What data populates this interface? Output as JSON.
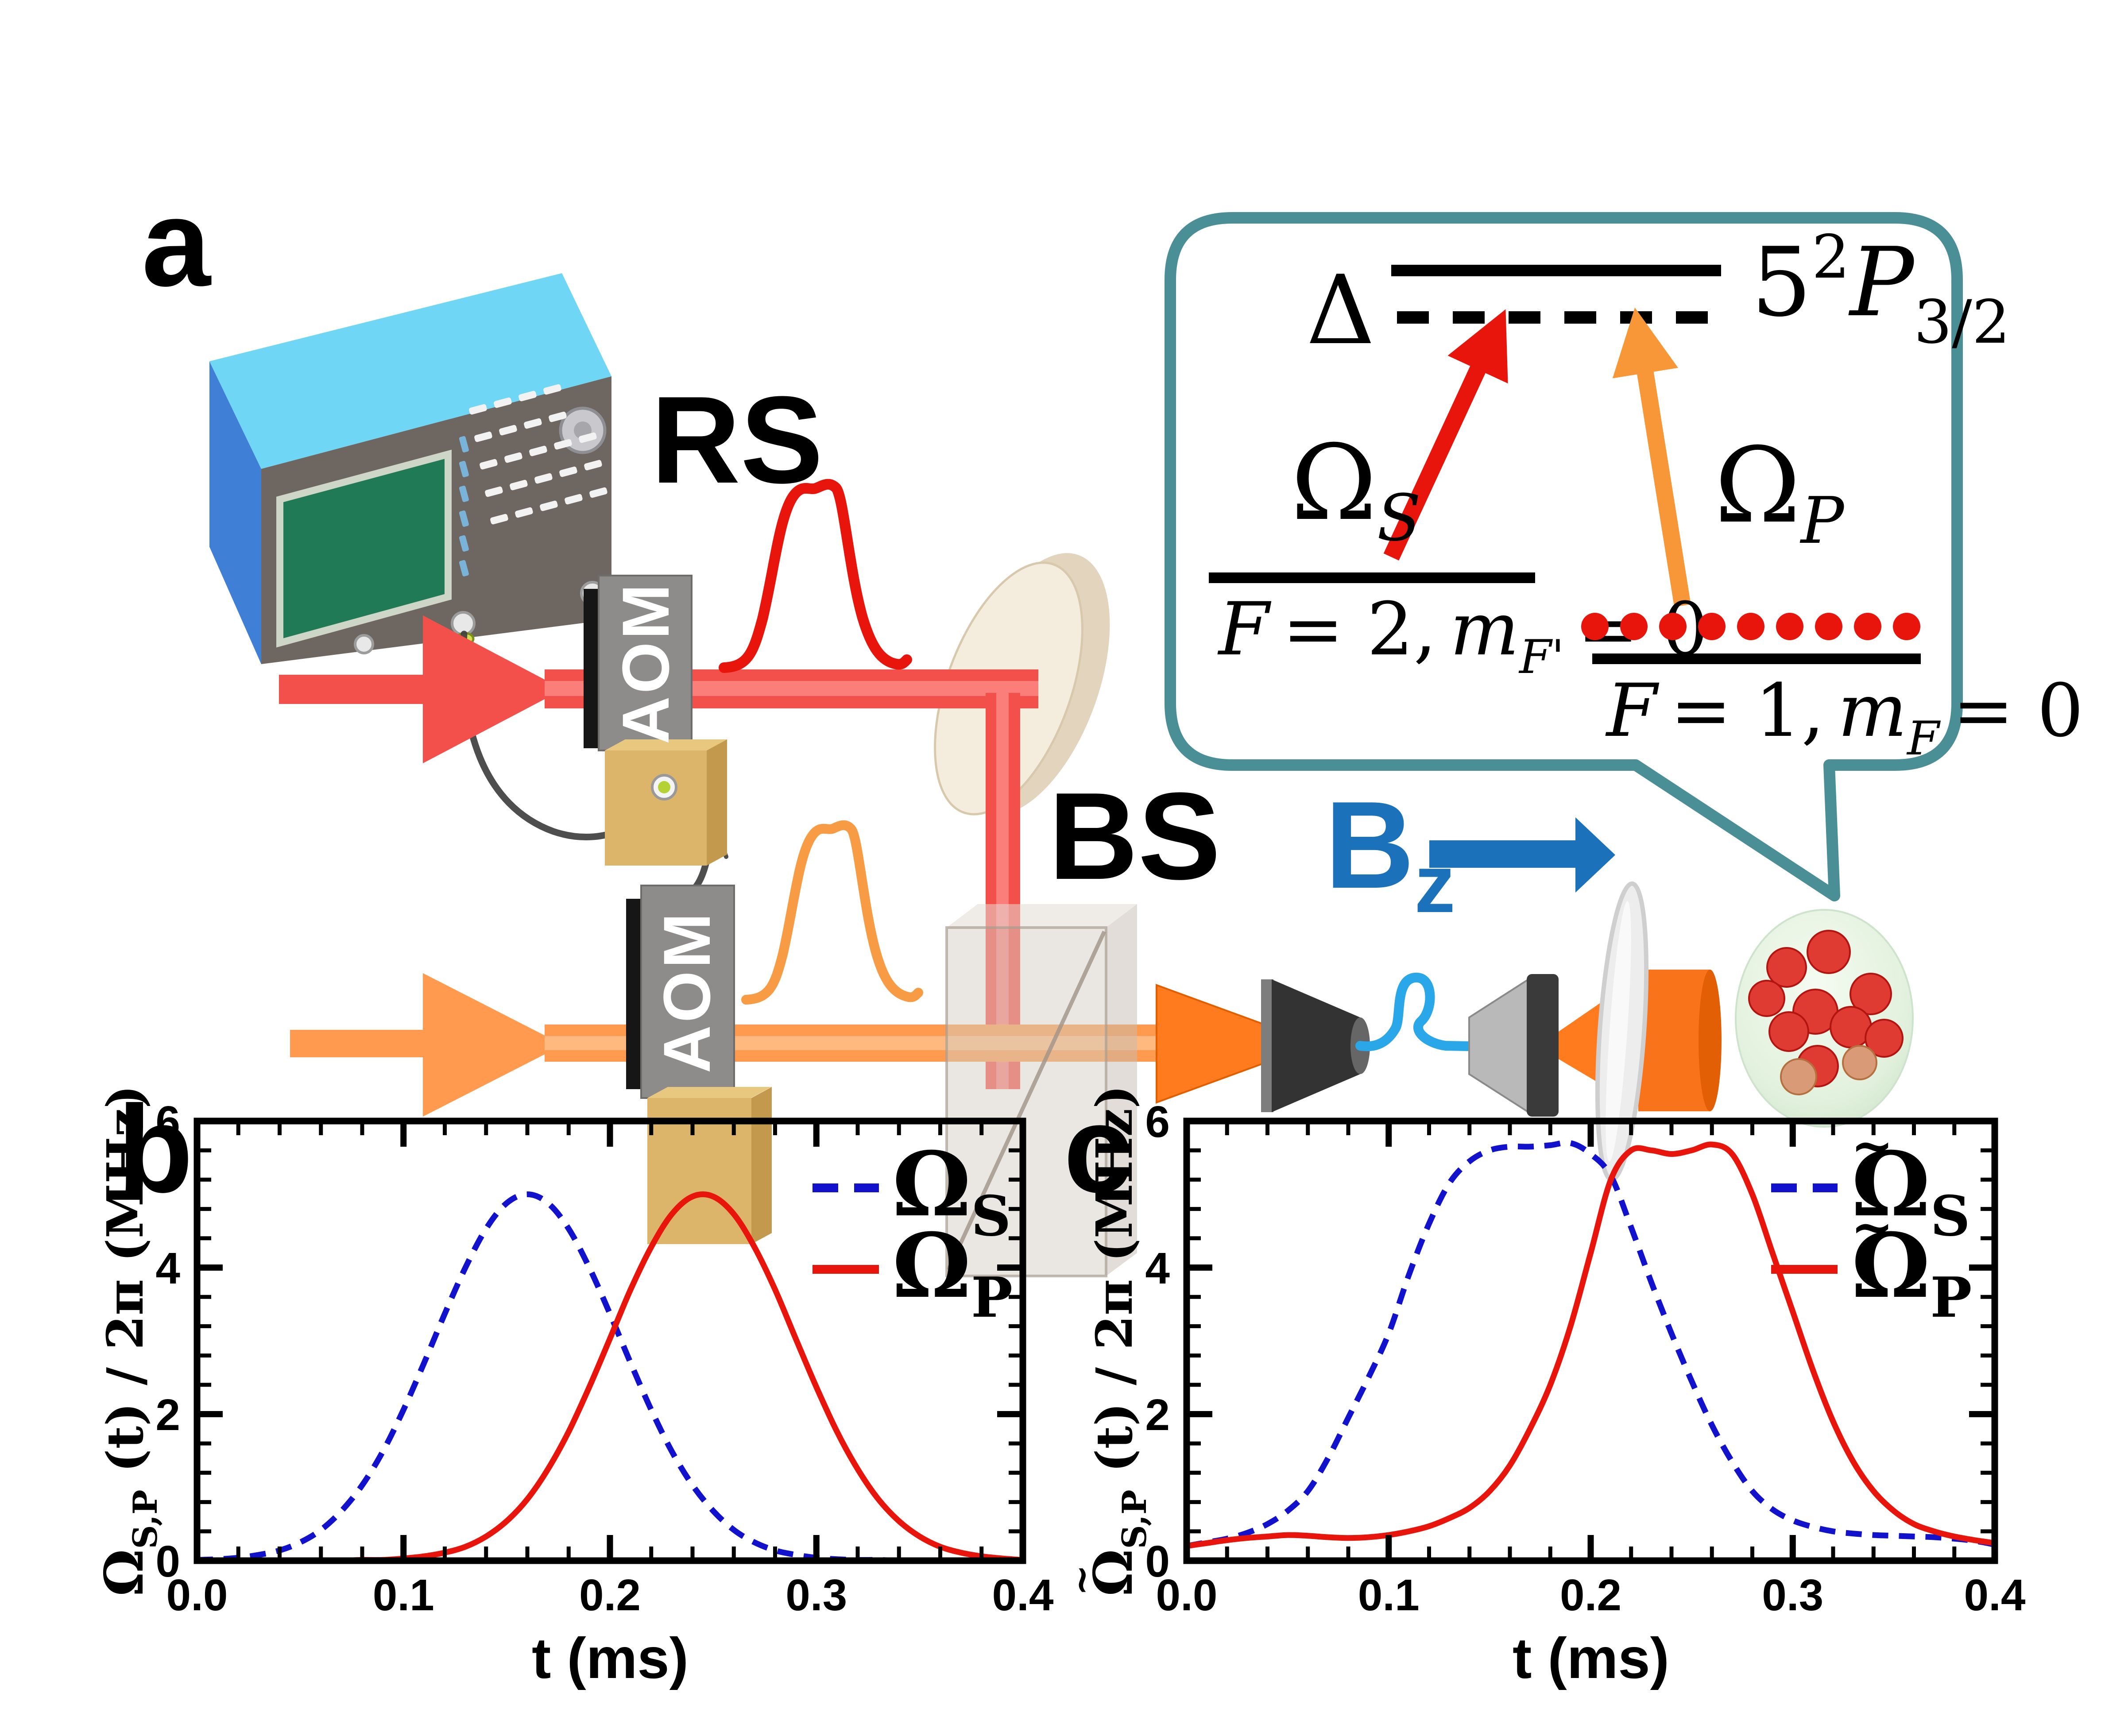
{
  "figure": {
    "panel_a_label": "a",
    "panel_b_label": "b",
    "panel_c_label": "c",
    "rs_label": "RS",
    "aom_label": "AOM",
    "bs_label": "BS",
    "bz": {
      "base": "B",
      "sub": "z"
    },
    "colors": {
      "red_beam": "#f4504b",
      "orange_beam": "#ff9a4e",
      "pulse_red": "#e8150d",
      "pulse_orange": "#f79b45",
      "bz_blue": "#1b72bb",
      "bubble_teal": "#4a8e96",
      "curve_blue": "#1212cc",
      "curve_red": "#e8150d"
    },
    "inset": {
      "delta": "Δ",
      "excited": {
        "n": "5",
        "sup": "2",
        "p": "P",
        "sub": "3/2"
      },
      "omega_s": {
        "base": "Ω",
        "sub": "S"
      },
      "omega_p": {
        "base": "Ω",
        "sub": "P"
      },
      "f2": {
        "f": "F",
        "mid": "= 2,",
        "m": "m",
        "sub": "F'",
        "end": "= 0"
      },
      "f1": {
        "f": "F",
        "mid": "= 1,",
        "m": "m",
        "sub": "F",
        "end": "= 0"
      }
    }
  },
  "chart_data": [
    {
      "id": "b",
      "type": "line",
      "title": "",
      "xlabel": "t (ms)",
      "ylabel": {
        "tilde": false,
        "base": "Ω",
        "sub": "S,P",
        "rest": " (t) / 2π (MHz)"
      },
      "xlim": [
        0,
        0.4
      ],
      "ylim": [
        0,
        6
      ],
      "xticks": [
        0,
        0.1,
        0.2,
        0.3,
        0.4
      ],
      "yticks": [
        0,
        2,
        4,
        6
      ],
      "xminor": 0.02,
      "yminor": 0.4,
      "grid": false,
      "legend_position": "inside top-right",
      "x": [
        0,
        0.01,
        0.02,
        0.03,
        0.04,
        0.05,
        0.06,
        0.07,
        0.08,
        0.09,
        0.1,
        0.11,
        0.12,
        0.13,
        0.14,
        0.15,
        0.16,
        0.17,
        0.18,
        0.19,
        0.2,
        0.21,
        0.22,
        0.23,
        0.24,
        0.25,
        0.26,
        0.27,
        0.28,
        0.29,
        0.3,
        0.31,
        0.32,
        0.33,
        0.34,
        0.35,
        0.36,
        0.37,
        0.38,
        0.39,
        0.4
      ],
      "series": [
        {
          "name_base": "Ω",
          "name_sub": "S",
          "tilde": false,
          "color": "#1212cc",
          "dash": true,
          "peak_mhz": 5.0,
          "peak_t_ms": 0.16,
          "values": [
            0.01,
            0.02,
            0.04,
            0.08,
            0.14,
            0.25,
            0.42,
            0.68,
            1.03,
            1.49,
            2.06,
            2.7,
            3.37,
            4.0,
            4.53,
            4.88,
            5.0,
            4.88,
            4.53,
            4.0,
            3.37,
            2.7,
            2.06,
            1.49,
            1.03,
            0.68,
            0.42,
            0.25,
            0.14,
            0.08,
            0.04,
            0.02,
            0.01,
            0.01,
            0,
            0,
            0,
            0,
            0,
            0,
            0
          ]
        },
        {
          "name_base": "Ω",
          "name_sub": "P",
          "tilde": false,
          "color": "#e8150d",
          "dash": false,
          "peak_mhz": 5.0,
          "peak_t_ms": 0.245,
          "values": [
            0,
            0,
            0,
            0,
            0,
            0,
            0,
            0,
            0.01,
            0.01,
            0.03,
            0.06,
            0.11,
            0.19,
            0.33,
            0.54,
            0.84,
            1.25,
            1.76,
            2.37,
            3.03,
            3.7,
            4.28,
            4.73,
            4.97,
            4.97,
            4.73,
            4.28,
            3.7,
            3.03,
            2.37,
            1.76,
            1.25,
            0.84,
            0.54,
            0.33,
            0.19,
            0.11,
            0.06,
            0.03,
            0.01
          ]
        }
      ]
    },
    {
      "id": "c",
      "type": "line",
      "title": "",
      "xlabel": "t (ms)",
      "ylabel": {
        "tilde": true,
        "base": "Ω",
        "sub": "S,P",
        "rest": " (t) / 2π (MHz)"
      },
      "xlim": [
        0,
        0.4
      ],
      "ylim": [
        0,
        6
      ],
      "xticks": [
        0,
        0.1,
        0.2,
        0.3,
        0.4
      ],
      "yticks": [
        0,
        2,
        4,
        6
      ],
      "xminor": 0.02,
      "yminor": 0.4,
      "grid": false,
      "legend_position": "inside top-right",
      "x": [
        0,
        0.01,
        0.02,
        0.03,
        0.04,
        0.05,
        0.06,
        0.07,
        0.08,
        0.09,
        0.1,
        0.11,
        0.12,
        0.13,
        0.14,
        0.15,
        0.16,
        0.17,
        0.18,
        0.19,
        0.2,
        0.21,
        0.22,
        0.23,
        0.24,
        0.25,
        0.26,
        0.27,
        0.28,
        0.29,
        0.3,
        0.31,
        0.32,
        0.33,
        0.34,
        0.35,
        0.36,
        0.37,
        0.38,
        0.39,
        0.4
      ],
      "series": [
        {
          "name_base": "Ω",
          "name_sub": "S",
          "tilde": true,
          "color": "#1212cc",
          "dash": true,
          "plateau_mhz": 5.7,
          "values": [
            0.2,
            0.25,
            0.3,
            0.38,
            0.5,
            0.68,
            0.95,
            1.4,
            1.95,
            2.5,
            3.1,
            3.9,
            4.6,
            5.15,
            5.45,
            5.6,
            5.65,
            5.65,
            5.67,
            5.7,
            5.55,
            5.25,
            4.55,
            3.8,
            3.1,
            2.45,
            1.85,
            1.35,
            0.95,
            0.7,
            0.55,
            0.46,
            0.4,
            0.37,
            0.35,
            0.34,
            0.33,
            0.32,
            0.3,
            0.27,
            0.22
          ]
        },
        {
          "name_base": "Ω",
          "name_sub": "P",
          "tilde": true,
          "color": "#e8150d",
          "dash": false,
          "plateau_mhz": 5.7,
          "values": [
            0.2,
            0.24,
            0.28,
            0.31,
            0.33,
            0.35,
            0.34,
            0.32,
            0.31,
            0.32,
            0.35,
            0.4,
            0.47,
            0.58,
            0.72,
            0.95,
            1.3,
            1.8,
            2.4,
            3.2,
            4.2,
            5.2,
            5.6,
            5.6,
            5.55,
            5.6,
            5.68,
            5.55,
            5.0,
            4.2,
            3.4,
            2.6,
            1.9,
            1.35,
            0.95,
            0.68,
            0.5,
            0.4,
            0.33,
            0.28,
            0.24
          ]
        }
      ]
    }
  ]
}
